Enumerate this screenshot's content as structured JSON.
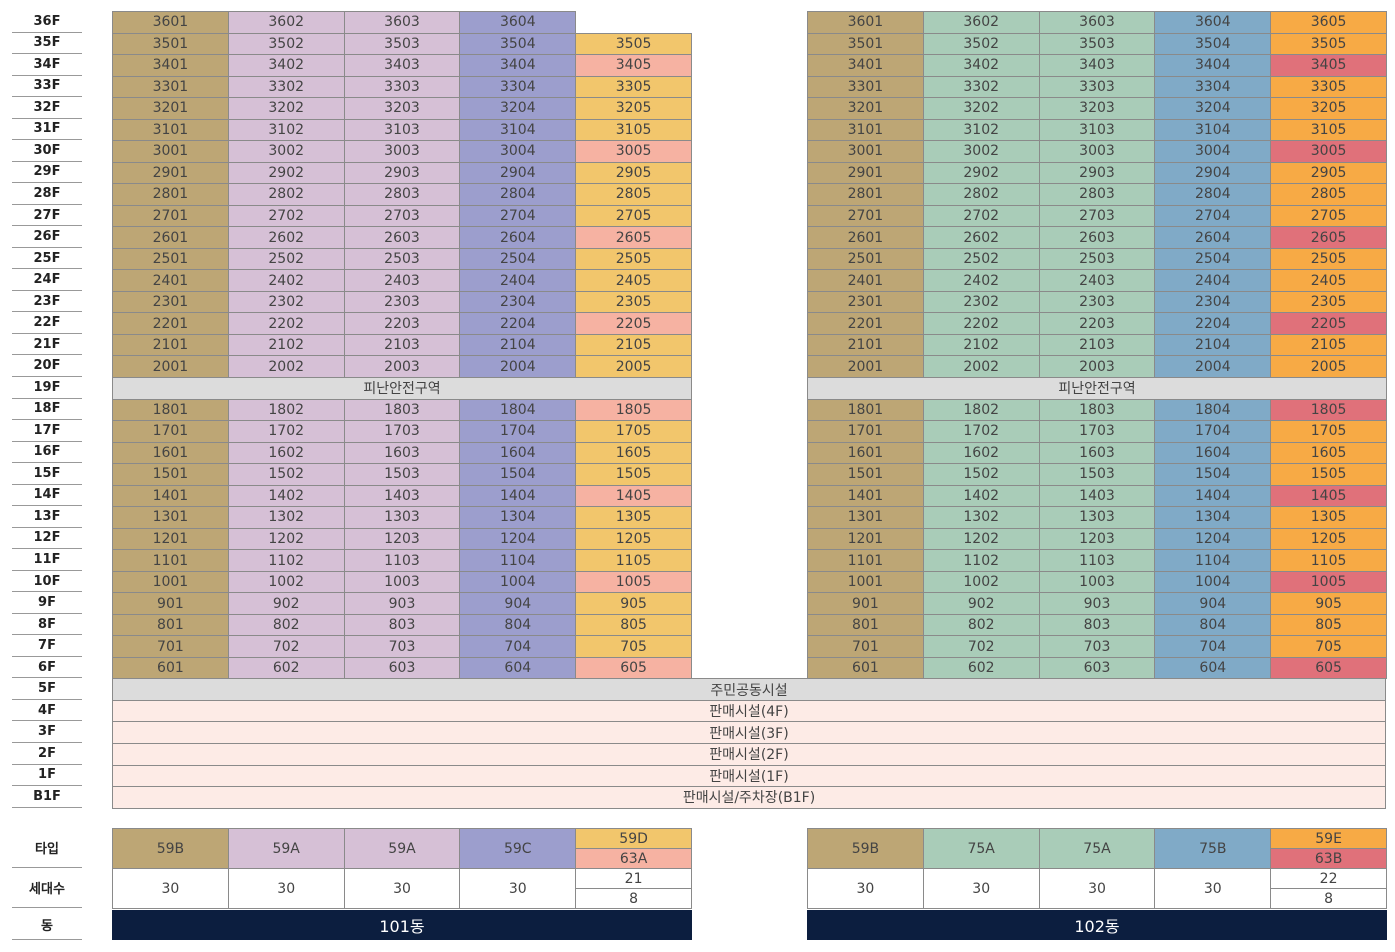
{
  "floors": [
    "36F",
    "35F",
    "34F",
    "33F",
    "32F",
    "31F",
    "30F",
    "29F",
    "28F",
    "27F",
    "26F",
    "25F",
    "24F",
    "23F",
    "22F",
    "21F",
    "20F",
    "19F",
    "18F",
    "17F",
    "16F",
    "15F",
    "14F",
    "13F",
    "12F",
    "11F",
    "10F",
    "9F",
    "8F",
    "7F",
    "6F",
    "5F",
    "4F",
    "3F",
    "2F",
    "1F",
    "B1F"
  ],
  "podium": [
    "주민공동시설",
    "판매시설(4F)",
    "판매시설(3F)",
    "판매시설(2F)",
    "판매시설(1F)",
    "판매시설/주차장(B1F)"
  ],
  "table_labels": [
    "타입",
    "세대수",
    "동"
  ],
  "buildings": [
    {
      "name": "101동",
      "refuge": "피난안전구역",
      "colors": [
        "#bda675",
        "#d6c0d6",
        "#d6c0d6",
        "#9c9ecd",
        "#f2c66c",
        "#f6b2a2"
      ],
      "rows": [
        {
          "units": [
            "3601",
            "3602",
            "3603",
            "3604"
          ]
        },
        {
          "units": [
            "3501",
            "3502",
            "3503",
            "3504",
            "3505"
          ]
        },
        {
          "units": [
            "3401",
            "3402",
            "3403",
            "3404",
            "3405"
          ],
          "alt": true
        },
        {
          "units": [
            "3301",
            "3302",
            "3303",
            "3304",
            "3305"
          ]
        },
        {
          "units": [
            "3201",
            "3202",
            "3203",
            "3204",
            "3205"
          ]
        },
        {
          "units": [
            "3101",
            "3102",
            "3103",
            "3104",
            "3105"
          ]
        },
        {
          "units": [
            "3001",
            "3002",
            "3003",
            "3004",
            "3005"
          ],
          "alt": true
        },
        {
          "units": [
            "2901",
            "2902",
            "2903",
            "2904",
            "2905"
          ]
        },
        {
          "units": [
            "2801",
            "2802",
            "2803",
            "2804",
            "2805"
          ]
        },
        {
          "units": [
            "2701",
            "2702",
            "2703",
            "2704",
            "2705"
          ]
        },
        {
          "units": [
            "2601",
            "2602",
            "2603",
            "2604",
            "2605"
          ],
          "alt": true
        },
        {
          "units": [
            "2501",
            "2502",
            "2503",
            "2504",
            "2505"
          ]
        },
        {
          "units": [
            "2401",
            "2402",
            "2403",
            "2404",
            "2405"
          ]
        },
        {
          "units": [
            "2301",
            "2302",
            "2303",
            "2304",
            "2305"
          ]
        },
        {
          "units": [
            "2201",
            "2202",
            "2203",
            "2204",
            "2205"
          ],
          "alt": true
        },
        {
          "units": [
            "2101",
            "2102",
            "2103",
            "2104",
            "2105"
          ]
        },
        {
          "units": [
            "2001",
            "2002",
            "2003",
            "2004",
            "2005"
          ]
        },
        {
          "units": [
            "1801",
            "1802",
            "1803",
            "1804",
            "1805"
          ],
          "alt": true
        },
        {
          "units": [
            "1701",
            "1702",
            "1703",
            "1704",
            "1705"
          ]
        },
        {
          "units": [
            "1601",
            "1602",
            "1603",
            "1604",
            "1605"
          ]
        },
        {
          "units": [
            "1501",
            "1502",
            "1503",
            "1504",
            "1505"
          ]
        },
        {
          "units": [
            "1401",
            "1402",
            "1403",
            "1404",
            "1405"
          ],
          "alt": true
        },
        {
          "units": [
            "1301",
            "1302",
            "1303",
            "1304",
            "1305"
          ]
        },
        {
          "units": [
            "1201",
            "1202",
            "1203",
            "1204",
            "1205"
          ]
        },
        {
          "units": [
            "1101",
            "1102",
            "1103",
            "1104",
            "1105"
          ]
        },
        {
          "units": [
            "1001",
            "1002",
            "1003",
            "1004",
            "1005"
          ],
          "alt": true
        },
        {
          "units": [
            "901",
            "902",
            "903",
            "904",
            "905"
          ]
        },
        {
          "units": [
            "801",
            "802",
            "803",
            "804",
            "805"
          ]
        },
        {
          "units": [
            "701",
            "702",
            "703",
            "704",
            "705"
          ]
        },
        {
          "units": [
            "601",
            "602",
            "603",
            "604",
            "605"
          ],
          "alt": true
        }
      ],
      "types": [
        {
          "names": [
            "59B"
          ],
          "counts": [
            30
          ]
        },
        {
          "names": [
            "59A"
          ],
          "counts": [
            30
          ]
        },
        {
          "names": [
            "59A"
          ],
          "counts": [
            30
          ]
        },
        {
          "names": [
            "59C"
          ],
          "counts": [
            30
          ]
        },
        {
          "names": [
            "59D",
            "63A"
          ],
          "counts": [
            21,
            8
          ]
        }
      ]
    },
    {
      "name": "102동",
      "refuge": "피난안전구역",
      "colors": [
        "#bda675",
        "#a9ccb8",
        "#a9ccb8",
        "#80aac7",
        "#f7aa45",
        "#e0717a"
      ],
      "rows": [
        {
          "units": [
            "3601",
            "3602",
            "3603",
            "3604",
            "3605"
          ]
        },
        {
          "units": [
            "3501",
            "3502",
            "3503",
            "3504",
            "3505"
          ]
        },
        {
          "units": [
            "3401",
            "3402",
            "3403",
            "3404",
            "3405"
          ],
          "alt": true
        },
        {
          "units": [
            "3301",
            "3302",
            "3303",
            "3304",
            "3305"
          ]
        },
        {
          "units": [
            "3201",
            "3202",
            "3203",
            "3204",
            "3205"
          ]
        },
        {
          "units": [
            "3101",
            "3102",
            "3103",
            "3104",
            "3105"
          ]
        },
        {
          "units": [
            "3001",
            "3002",
            "3003",
            "3004",
            "3005"
          ],
          "alt": true
        },
        {
          "units": [
            "2901",
            "2902",
            "2903",
            "2904",
            "2905"
          ]
        },
        {
          "units": [
            "2801",
            "2802",
            "2803",
            "2804",
            "2805"
          ]
        },
        {
          "units": [
            "2701",
            "2702",
            "2703",
            "2704",
            "2705"
          ]
        },
        {
          "units": [
            "2601",
            "2602",
            "2603",
            "2604",
            "2605"
          ],
          "alt": true
        },
        {
          "units": [
            "2501",
            "2502",
            "2503",
            "2504",
            "2505"
          ]
        },
        {
          "units": [
            "2401",
            "2402",
            "2403",
            "2404",
            "2405"
          ]
        },
        {
          "units": [
            "2301",
            "2302",
            "2303",
            "2304",
            "2305"
          ]
        },
        {
          "units": [
            "2201",
            "2202",
            "2203",
            "2204",
            "2205"
          ],
          "alt": true
        },
        {
          "units": [
            "2101",
            "2102",
            "2103",
            "2104",
            "2105"
          ]
        },
        {
          "units": [
            "2001",
            "2002",
            "2003",
            "2004",
            "2005"
          ]
        },
        {
          "units": [
            "1801",
            "1802",
            "1803",
            "1804",
            "1805"
          ],
          "alt": true
        },
        {
          "units": [
            "1701",
            "1702",
            "1703",
            "1704",
            "1705"
          ]
        },
        {
          "units": [
            "1601",
            "1602",
            "1603",
            "1604",
            "1605"
          ]
        },
        {
          "units": [
            "1501",
            "1502",
            "1503",
            "1504",
            "1505"
          ]
        },
        {
          "units": [
            "1401",
            "1402",
            "1403",
            "1404",
            "1405"
          ],
          "alt": true
        },
        {
          "units": [
            "1301",
            "1302",
            "1303",
            "1304",
            "1305"
          ]
        },
        {
          "units": [
            "1201",
            "1202",
            "1203",
            "1204",
            "1205"
          ]
        },
        {
          "units": [
            "1101",
            "1102",
            "1103",
            "1104",
            "1105"
          ]
        },
        {
          "units": [
            "1001",
            "1002",
            "1003",
            "1004",
            "1005"
          ],
          "alt": true
        },
        {
          "units": [
            "901",
            "902",
            "903",
            "904",
            "905"
          ]
        },
        {
          "units": [
            "801",
            "802",
            "803",
            "804",
            "805"
          ]
        },
        {
          "units": [
            "701",
            "702",
            "703",
            "704",
            "705"
          ]
        },
        {
          "units": [
            "601",
            "602",
            "603",
            "604",
            "605"
          ],
          "alt": true
        }
      ],
      "types": [
        {
          "names": [
            "59B"
          ],
          "counts": [
            30
          ]
        },
        {
          "names": [
            "75A"
          ],
          "counts": [
            30
          ]
        },
        {
          "names": [
            "75A"
          ],
          "counts": [
            30
          ]
        },
        {
          "names": [
            "75B"
          ],
          "counts": [
            30
          ]
        },
        {
          "names": [
            "59E",
            "63B"
          ],
          "counts": [
            22,
            8
          ]
        }
      ]
    }
  ]
}
